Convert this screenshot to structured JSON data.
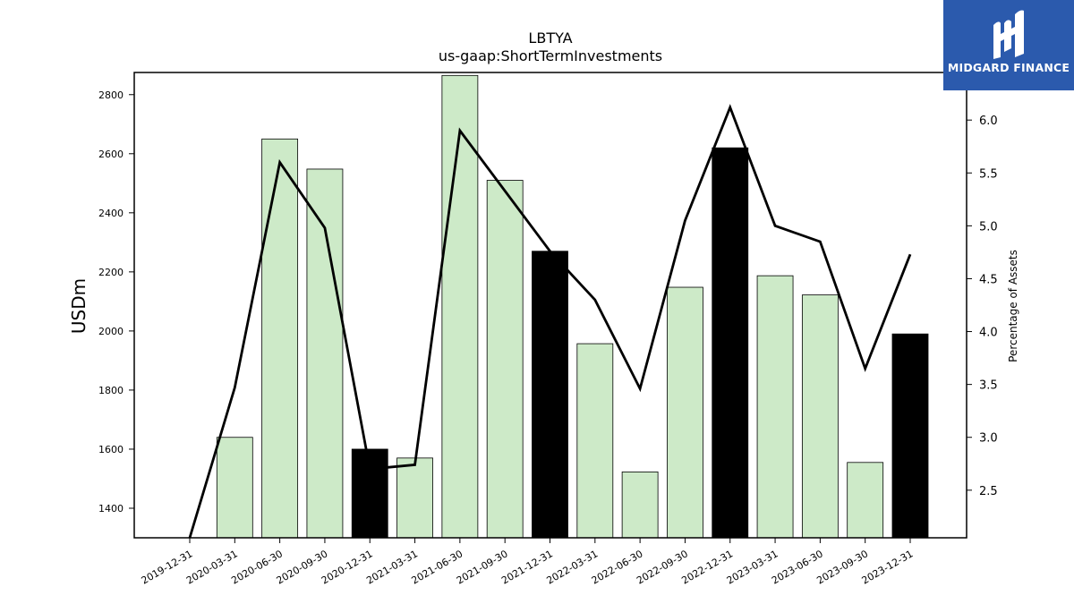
{
  "chart_data": {
    "type": "bar",
    "title": "LBTYA",
    "subtitle": "us-gaap:ShortTermInvestments",
    "ylabel": "USDm",
    "y2label": "Percentage of Assets",
    "categories": [
      "2019-12-31",
      "2020-03-31",
      "2020-06-30",
      "2020-09-30",
      "2020-12-31",
      "2021-03-31",
      "2021-06-30",
      "2021-09-30",
      "2021-12-31",
      "2022-03-31",
      "2022-06-30",
      "2022-09-30",
      "2022-12-31",
      "2023-03-31",
      "2023-06-30",
      "2023-09-30",
      "2023-12-31"
    ],
    "series": [
      {
        "type": "bar",
        "values": [
          null,
          1640,
          2650,
          2548,
          1600,
          1570,
          2865,
          2510,
          2270,
          1957,
          1523,
          2148,
          2620,
          2187,
          2122,
          1555,
          1990
        ]
      },
      {
        "type": "line",
        "axis": "right",
        "values": [
          2.05,
          3.47,
          5.6,
          4.98,
          2.7,
          2.74,
          5.9,
          5.33,
          4.76,
          4.3,
          3.46,
          5.05,
          6.12,
          5.0,
          4.85,
          3.65,
          4.73
        ]
      }
    ],
    "bar_colors": [
      "#cdeac8",
      "#cdeac8",
      "#cdeac8",
      "#cdeac8",
      "#000000",
      "#cdeac8",
      "#cdeac8",
      "#cdeac8",
      "#000000",
      "#cdeac8",
      "#cdeac8",
      "#cdeac8",
      "#000000",
      "#cdeac8",
      "#cdeac8",
      "#cdeac8",
      "#000000"
    ],
    "ylim": [
      1300,
      2875
    ],
    "y2lim": [
      2.05,
      6.45
    ],
    "yticks": [
      1400,
      1600,
      1800,
      2000,
      2200,
      2400,
      2600,
      2800
    ],
    "y2ticks": [
      2.5,
      3.0,
      3.5,
      4.0,
      4.5,
      5.0,
      5.5,
      6.0
    ],
    "y2tick_labels": [
      "2.5",
      "3.0",
      "3.5",
      "4.0",
      "4.5",
      "5.0",
      "5.5",
      "6.0"
    ],
    "grid": false
  },
  "logo": {
    "text": "MIDGARD FINANCE",
    "background": "#2b5aad"
  }
}
